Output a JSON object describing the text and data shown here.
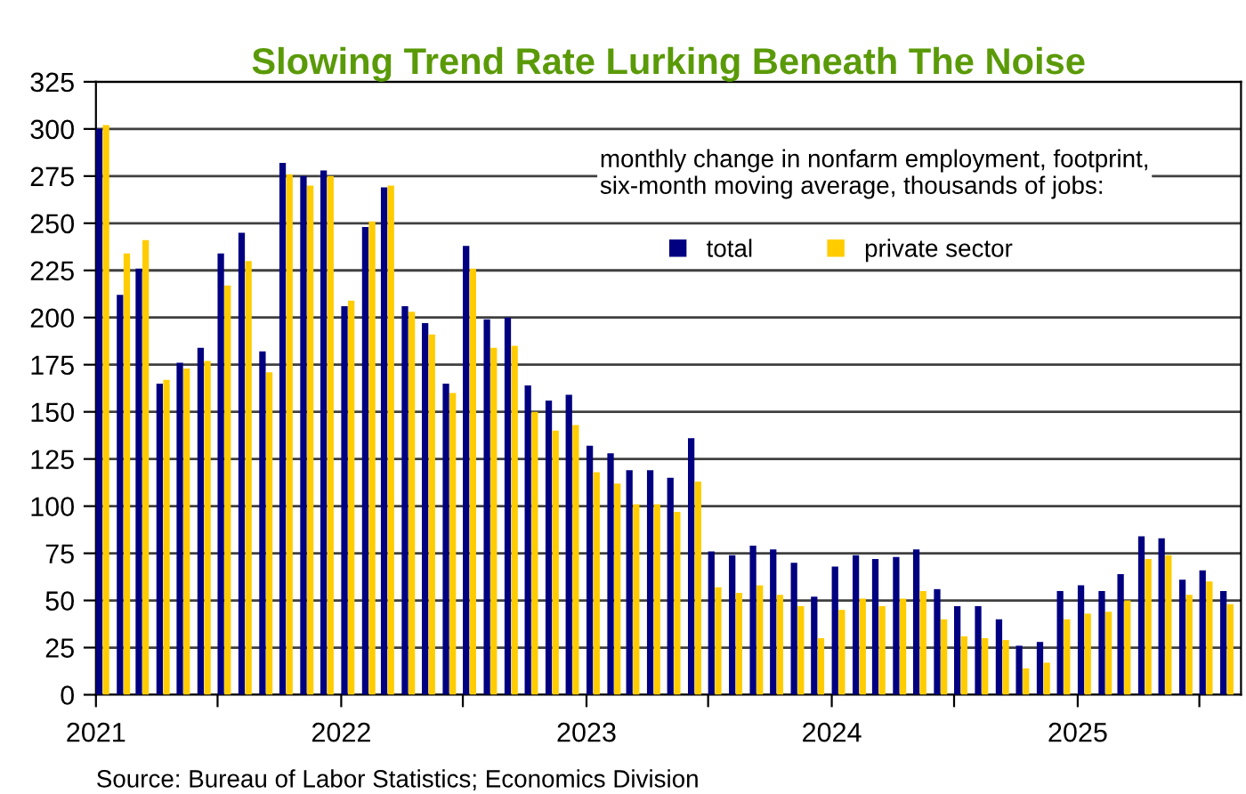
{
  "chart_data": {
    "type": "bar",
    "title": "Slowing Trend Rate Lurking Beneath The Noise",
    "x": [
      "2021-01",
      "2021-02",
      "2021-03",
      "2021-04",
      "2021-05",
      "2021-06",
      "2021-07",
      "2021-08",
      "2021-09",
      "2021-10",
      "2021-11",
      "2021-12",
      "2022-01",
      "2022-02",
      "2022-03",
      "2022-04",
      "2022-05",
      "2022-06",
      "2022-07",
      "2022-08",
      "2022-09",
      "2022-10",
      "2022-11",
      "2022-12",
      "2023-01",
      "2023-02",
      "2023-03",
      "2023-04",
      "2023-05",
      "2023-06",
      "2023-07",
      "2023-08",
      "2023-09",
      "2023-10",
      "2023-11",
      "2023-12",
      "2024-01",
      "2024-02",
      "2024-03",
      "2024-04",
      "2024-05",
      "2024-06",
      "2024-07",
      "2024-08",
      "2024-09",
      "2024-10",
      "2024-11",
      "2024-12",
      "2025-01",
      "2025-02",
      "2025-03",
      "2025-04",
      "2025-05",
      "2025-06",
      "2025-07",
      "2025-08"
    ],
    "series": [
      {
        "name": "total",
        "color": "#000080",
        "values": [
          300,
          212,
          226,
          165,
          176,
          184,
          234,
          245,
          182,
          282,
          275,
          278,
          206,
          248,
          269,
          206,
          197,
          165,
          238,
          199,
          200,
          164,
          156,
          159,
          132,
          128,
          119,
          119,
          115,
          136,
          76,
          74,
          79,
          77,
          70,
          52,
          68,
          74,
          72,
          73,
          77,
          56,
          47,
          47,
          40,
          26,
          28,
          55,
          58,
          55,
          64,
          84,
          83,
          61,
          66,
          55
        ]
      },
      {
        "name": "private sector",
        "color": "#ffcc00",
        "values": [
          302,
          234,
          241,
          167,
          173,
          177,
          217,
          230,
          171,
          276,
          270,
          275,
          209,
          251,
          270,
          203,
          191,
          160,
          226,
          184,
          185,
          150,
          140,
          143,
          118,
          112,
          101,
          101,
          97,
          113,
          57,
          54,
          58,
          53,
          47,
          30,
          45,
          51,
          47,
          51,
          55,
          40,
          31,
          30,
          29,
          14,
          17,
          40,
          43,
          44,
          50,
          72,
          74,
          53,
          60,
          48
        ]
      }
    ],
    "xlim": [
      "2021-01",
      "2025-09"
    ],
    "xticks": [
      {
        "value": "2021-01",
        "label": "2021"
      },
      {
        "value": "2021-07",
        "label": null
      },
      {
        "value": "2022-01",
        "label": "2022"
      },
      {
        "value": "2022-07",
        "label": null
      },
      {
        "value": "2023-01",
        "label": "2023"
      },
      {
        "value": "2023-07",
        "label": null
      },
      {
        "value": "2024-01",
        "label": "2024"
      },
      {
        "value": "2024-07",
        "label": null
      },
      {
        "value": "2025-01",
        "label": "2025"
      },
      {
        "value": "2025-07",
        "label": null
      }
    ],
    "ylim": [
      0,
      325
    ],
    "yticks": [
      0,
      25,
      50,
      75,
      100,
      125,
      150,
      175,
      200,
      225,
      250,
      275,
      300,
      325
    ],
    "grid": "y",
    "legend": "top right",
    "annotations": [
      "monthly change in nonfarm employment, footprint, six-month moving average, thousands of jobs:",
      "Source: Bureau of Labor Statistics; Economics Division"
    ]
  }
}
